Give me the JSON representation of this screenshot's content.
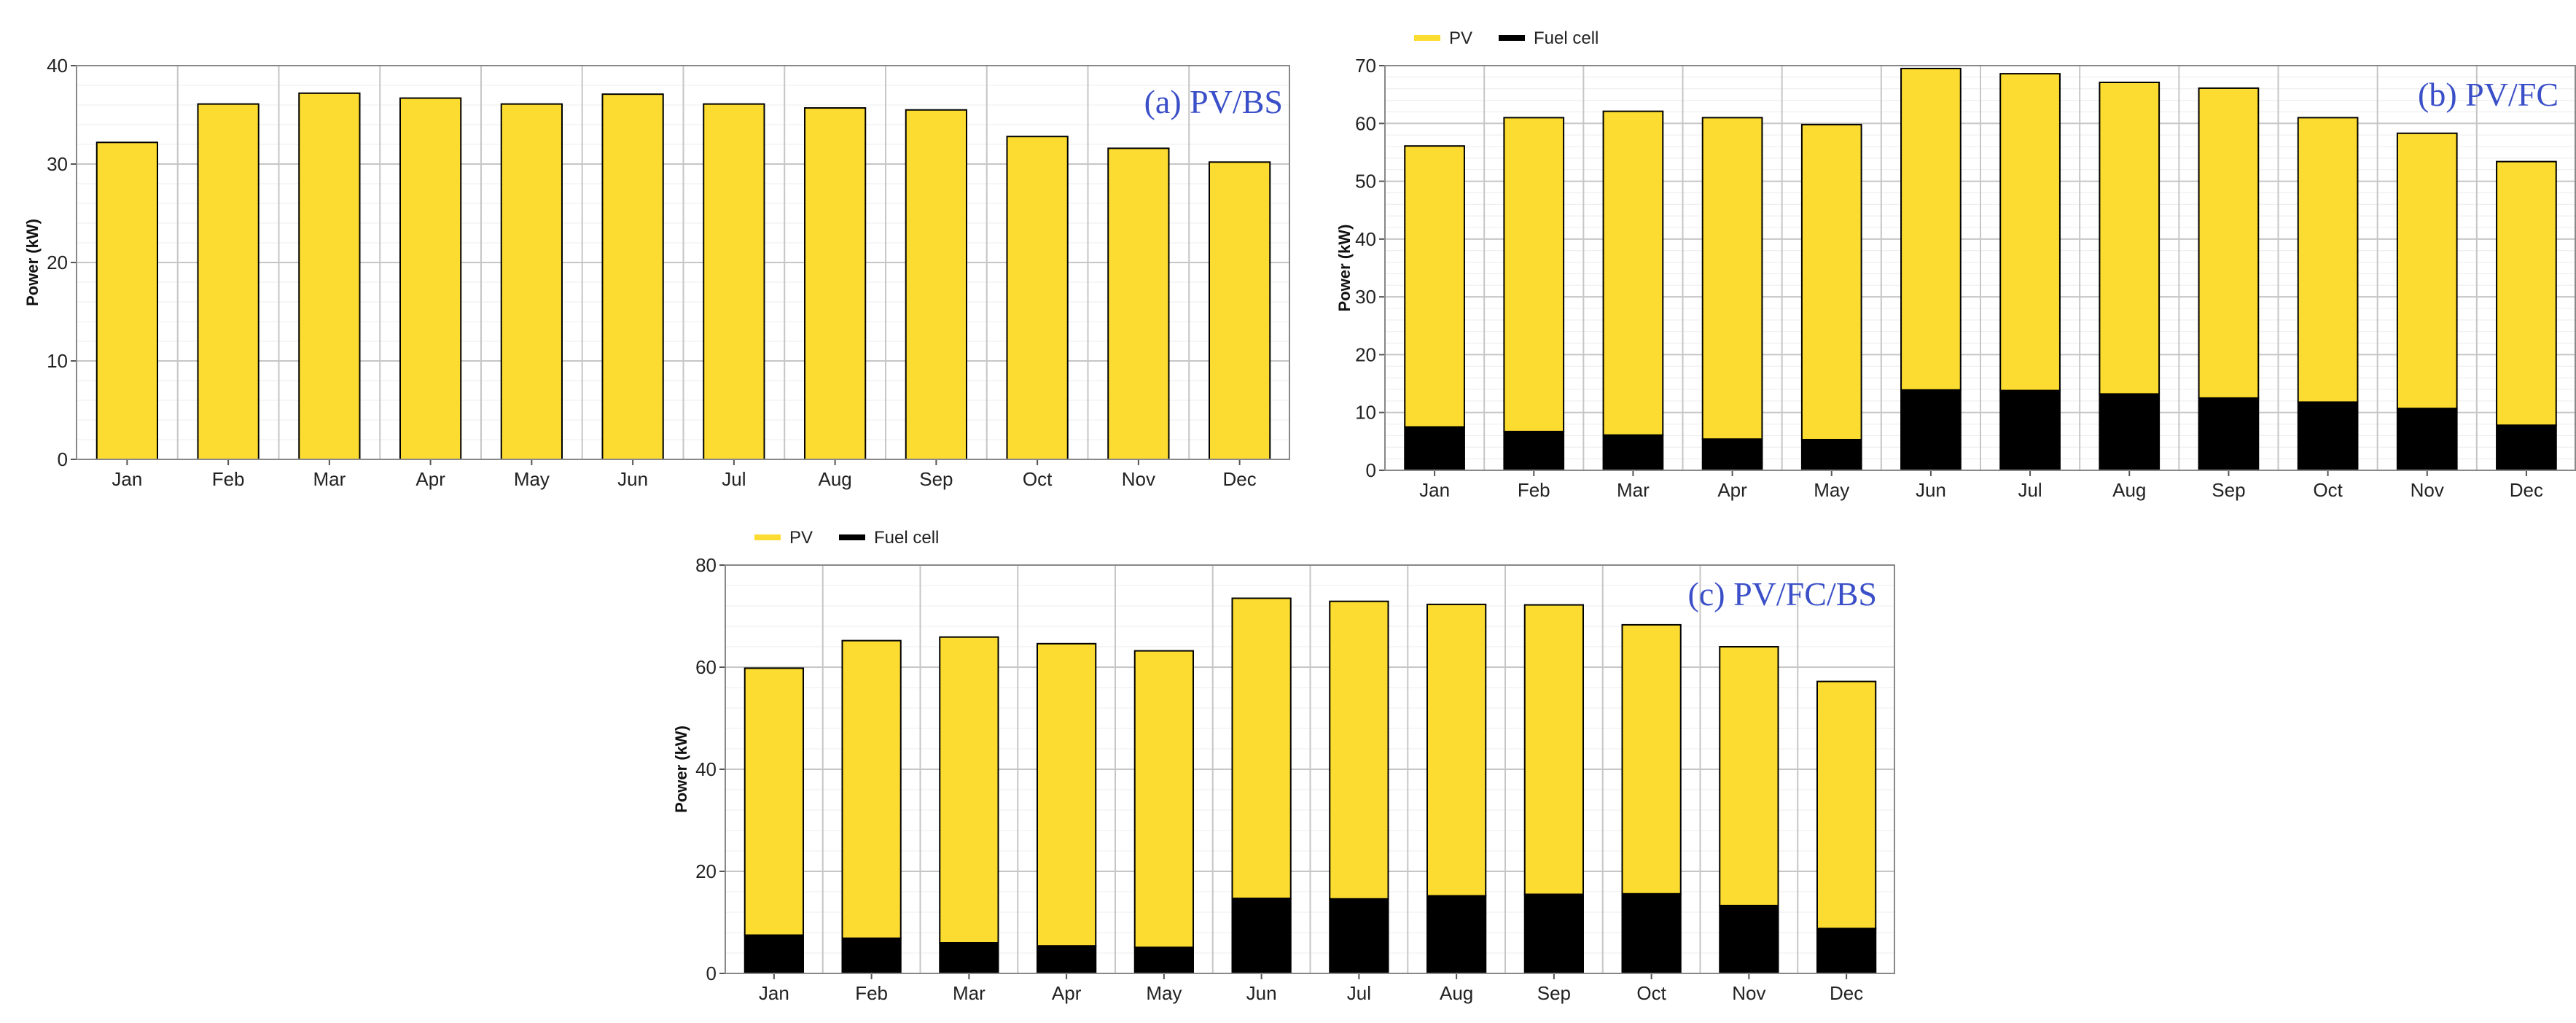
{
  "colors": {
    "pv": "#fcdc30",
    "fuel_cell": "#000000",
    "title": "#3a4fc8",
    "grid": "#c6c6c6",
    "frame": "#888888"
  },
  "chart_data": [
    {
      "id": "a",
      "type": "bar",
      "title": "(a) PV/BS",
      "ylabel": "Power (kW)",
      "ylim": [
        0,
        40
      ],
      "yticks": [
        0,
        10,
        20,
        30,
        40
      ],
      "categories": [
        "Jan",
        "Feb",
        "Mar",
        "Apr",
        "May",
        "Jun",
        "Jul",
        "Aug",
        "Sep",
        "Oct",
        "Nov",
        "Dec"
      ],
      "legend": [],
      "series": [
        {
          "name": "PV",
          "color": "#fcdc30",
          "values": [
            32.2,
            36.1,
            37.2,
            36.7,
            36.1,
            37.1,
            36.1,
            35.7,
            35.5,
            32.8,
            31.6,
            30.2
          ]
        }
      ]
    },
    {
      "id": "b",
      "type": "bar",
      "title": "(b) PV/FC",
      "ylabel": "Power (kW)",
      "ylim": [
        0,
        70
      ],
      "yticks": [
        0,
        10,
        20,
        30,
        40,
        50,
        60,
        70
      ],
      "categories": [
        "Jan",
        "Feb",
        "Mar",
        "Apr",
        "May",
        "Jun",
        "Jul",
        "Aug",
        "Sep",
        "Oct",
        "Nov",
        "Dec"
      ],
      "legend": [
        "PV",
        "Fuel cell"
      ],
      "series": [
        {
          "name": "Fuel cell",
          "color": "#000000",
          "values": [
            7.5,
            6.7,
            6.1,
            5.4,
            5.3,
            13.9,
            13.8,
            13.2,
            12.5,
            11.8,
            10.7,
            7.8
          ]
        },
        {
          "name": "PV",
          "color": "#fcdc30",
          "values": [
            48.6,
            54.3,
            56.0,
            55.6,
            54.5,
            55.6,
            54.8,
            53.9,
            53.6,
            49.2,
            47.6,
            45.6
          ]
        }
      ]
    },
    {
      "id": "c",
      "type": "bar",
      "title": "(c) PV/FC/BS",
      "ylabel": "Power (kW)",
      "ylim": [
        0,
        80
      ],
      "yticks": [
        0,
        20,
        40,
        60,
        80
      ],
      "categories": [
        "Jan",
        "Feb",
        "Mar",
        "Apr",
        "May",
        "Jun",
        "Jul",
        "Aug",
        "Sep",
        "Oct",
        "Nov",
        "Dec"
      ],
      "legend": [
        "PV",
        "Fuel cell"
      ],
      "series": [
        {
          "name": "Fuel cell",
          "color": "#000000",
          "values": [
            7.5,
            6.9,
            6.0,
            5.4,
            5.1,
            14.7,
            14.6,
            15.2,
            15.5,
            15.6,
            13.3,
            8.8
          ]
        },
        {
          "name": "PV",
          "color": "#fcdc30",
          "values": [
            52.3,
            58.3,
            59.9,
            59.2,
            58.1,
            58.8,
            58.3,
            57.1,
            56.7,
            52.7,
            50.7,
            48.4
          ]
        }
      ]
    }
  ]
}
